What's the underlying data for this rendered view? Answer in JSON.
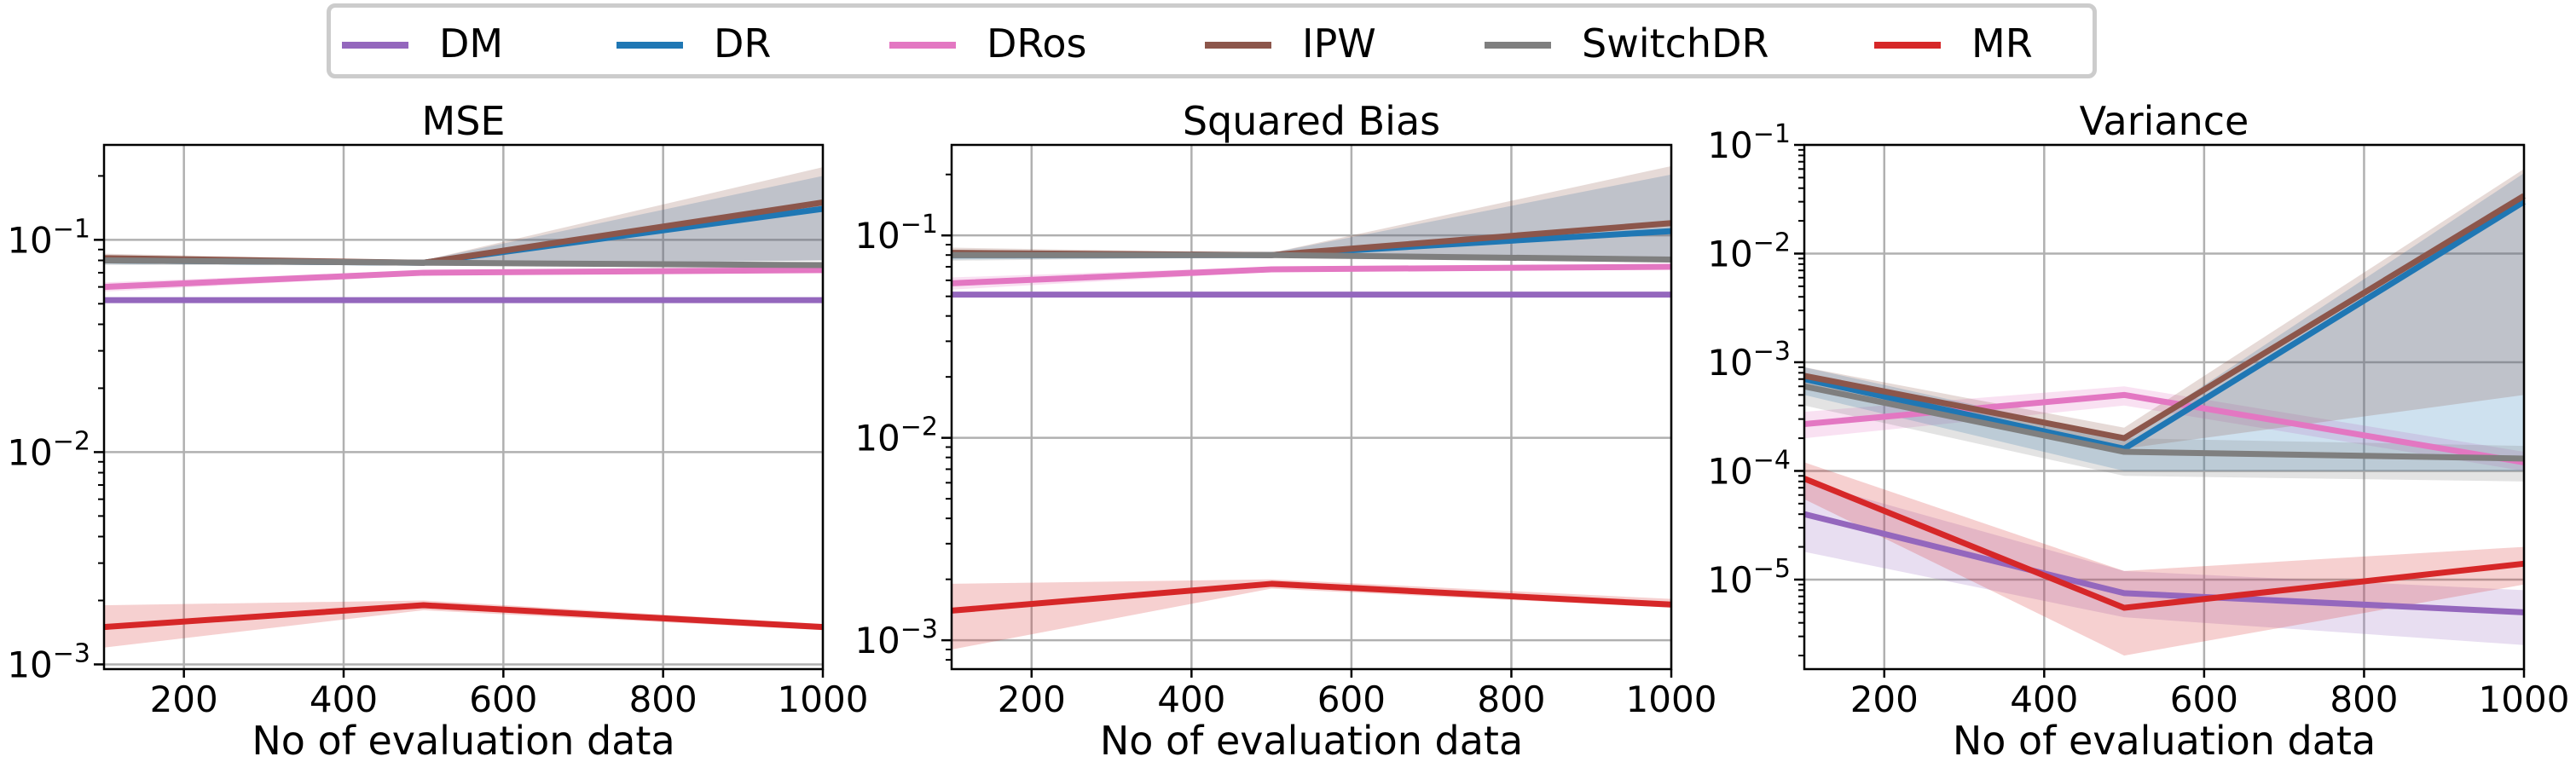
{
  "legend": {
    "items": [
      {
        "label": "DM",
        "color": "#9467bd"
      },
      {
        "label": "DR",
        "color": "#1f77b4"
      },
      {
        "label": "DRos",
        "color": "#e377c2"
      },
      {
        "label": "IPW",
        "color": "#8c564b"
      },
      {
        "label": "SwitchDR",
        "color": "#7f7f7f"
      },
      {
        "label": "MR",
        "color": "#d62728"
      }
    ]
  },
  "chart_data": [
    {
      "type": "line",
      "title": "MSE",
      "xlabel": "No of evaluation data",
      "ylabel": "",
      "yscale": "log",
      "x": [
        100,
        500,
        1000
      ],
      "xlim": [
        100,
        1000
      ],
      "ylim": [
        0.00095,
        0.28
      ],
      "xticks": [
        200,
        400,
        600,
        800,
        1000
      ],
      "yticks": [
        {
          "v": 0.001,
          "label": "10^-3"
        },
        {
          "v": 0.01,
          "label": "10^-2"
        },
        {
          "v": 0.1,
          "label": "10^-1"
        }
      ],
      "grid": true,
      "series": [
        {
          "name": "DM",
          "values": [
            0.052,
            0.052,
            0.052
          ],
          "lower": [
            0.051,
            0.051,
            0.051
          ],
          "upper": [
            0.053,
            0.053,
            0.053
          ]
        },
        {
          "name": "DR",
          "values": [
            0.08,
            0.078,
            0.14
          ],
          "lower": [
            0.077,
            0.076,
            0.08
          ],
          "upper": [
            0.083,
            0.08,
            0.2
          ]
        },
        {
          "name": "DRos",
          "values": [
            0.06,
            0.07,
            0.072
          ],
          "lower": [
            0.057,
            0.068,
            0.07
          ],
          "upper": [
            0.063,
            0.072,
            0.075
          ]
        },
        {
          "name": "IPW",
          "values": [
            0.082,
            0.078,
            0.15
          ],
          "lower": [
            0.078,
            0.076,
            0.08
          ],
          "upper": [
            0.086,
            0.08,
            0.22
          ]
        },
        {
          "name": "SwitchDR",
          "values": [
            0.08,
            0.078,
            0.076
          ],
          "lower": [
            0.076,
            0.076,
            0.074
          ],
          "upper": [
            0.084,
            0.08,
            0.078
          ]
        },
        {
          "name": "MR",
          "values": [
            0.0015,
            0.0019,
            0.0015
          ],
          "lower": [
            0.0012,
            0.0018,
            0.00145
          ],
          "upper": [
            0.0019,
            0.002,
            0.00155
          ]
        }
      ]
    },
    {
      "type": "line",
      "title": "Squared Bias",
      "xlabel": "No of evaluation data",
      "ylabel": "",
      "yscale": "log",
      "x": [
        100,
        500,
        1000
      ],
      "xlim": [
        100,
        1000
      ],
      "ylim": [
        0.00072,
        0.28
      ],
      "xticks": [
        200,
        400,
        600,
        800,
        1000
      ],
      "yticks": [
        {
          "v": 0.001,
          "label": "10^-3"
        },
        {
          "v": 0.01,
          "label": "10^-2"
        },
        {
          "v": 0.1,
          "label": "10^-1"
        }
      ],
      "grid": true,
      "series": [
        {
          "name": "DM",
          "values": [
            0.051,
            0.051,
            0.051
          ],
          "lower": [
            0.05,
            0.05,
            0.05
          ],
          "upper": [
            0.052,
            0.052,
            0.052
          ]
        },
        {
          "name": "DR",
          "values": [
            0.08,
            0.08,
            0.105
          ],
          "lower": [
            0.076,
            0.078,
            0.075
          ],
          "upper": [
            0.084,
            0.082,
            0.2
          ]
        },
        {
          "name": "DRos",
          "values": [
            0.058,
            0.068,
            0.07
          ],
          "lower": [
            0.054,
            0.066,
            0.068
          ],
          "upper": [
            0.062,
            0.07,
            0.072
          ]
        },
        {
          "name": "IPW",
          "values": [
            0.082,
            0.08,
            0.115
          ],
          "lower": [
            0.077,
            0.078,
            0.075
          ],
          "upper": [
            0.087,
            0.082,
            0.22
          ]
        },
        {
          "name": "SwitchDR",
          "values": [
            0.08,
            0.08,
            0.076
          ],
          "lower": [
            0.075,
            0.078,
            0.074
          ],
          "upper": [
            0.085,
            0.082,
            0.078
          ]
        },
        {
          "name": "MR",
          "values": [
            0.0014,
            0.0019,
            0.0015
          ],
          "lower": [
            0.0009,
            0.0018,
            0.00145
          ],
          "upper": [
            0.0019,
            0.002,
            0.0016
          ]
        }
      ]
    },
    {
      "type": "line",
      "title": "Variance",
      "xlabel": "No of evaluation data",
      "ylabel": "",
      "yscale": "log",
      "x": [
        100,
        500,
        1000
      ],
      "xlim": [
        100,
        1000
      ],
      "ylim": [
        1.5e-06,
        0.1
      ],
      "xticks": [
        200,
        400,
        600,
        800,
        1000
      ],
      "yticks": [
        {
          "v": 1e-05,
          "label": "10^-5"
        },
        {
          "v": 0.0001,
          "label": "10^-4"
        },
        {
          "v": 0.001,
          "label": "10^-3"
        },
        {
          "v": 0.01,
          "label": "10^-2"
        },
        {
          "v": 0.1,
          "label": "10^-1"
        }
      ],
      "grid": true,
      "series": [
        {
          "name": "DM",
          "values": [
            4e-05,
            7.5e-06,
            5e-06
          ],
          "lower": [
            1.8e-05,
            4.5e-06,
            2.5e-06
          ],
          "upper": [
            8e-05,
            1.2e-05,
            8e-06
          ]
        },
        {
          "name": "DR",
          "values": [
            0.0007,
            0.00016,
            0.03
          ],
          "lower": [
            0.0005,
            0.0001,
            0.0001
          ],
          "upper": [
            0.0009,
            0.0002,
            0.055
          ]
        },
        {
          "name": "DRos",
          "values": [
            0.00027,
            0.0005,
            0.00012
          ],
          "lower": [
            0.0002,
            0.0004,
            0.0001
          ],
          "upper": [
            0.00035,
            0.0006,
            0.00015
          ]
        },
        {
          "name": "IPW",
          "values": [
            0.00075,
            0.0002,
            0.034
          ],
          "lower": [
            0.0006,
            0.00016,
            0.0005
          ],
          "upper": [
            0.0009,
            0.00025,
            0.06
          ]
        },
        {
          "name": "SwitchDR",
          "values": [
            0.0006,
            0.00015,
            0.00013
          ],
          "lower": [
            0.0004,
            9e-05,
            8e-05
          ],
          "upper": [
            0.0008,
            0.0002,
            0.00017
          ]
        },
        {
          "name": "MR",
          "values": [
            8.5e-05,
            5.5e-06,
            1.4e-05
          ],
          "lower": [
            5.5e-05,
            2e-06,
            9e-06
          ],
          "upper": [
            0.00012,
            1.2e-05,
            2e-05
          ]
        }
      ]
    }
  ]
}
